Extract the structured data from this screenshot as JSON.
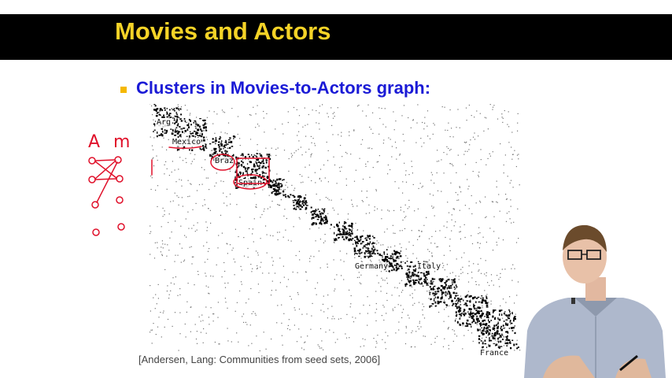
{
  "slide": {
    "title": "Movies and Actors",
    "bullet": "Clusters in Movies-to-Actors graph:",
    "citation": "[Andersen, Lang: Communities from seed sets, 2006]"
  },
  "matrix_plot": {
    "labels": {
      "arg": "Arg",
      "mexico": "Mexico",
      "brazil": "Braz",
      "spain": "Spain",
      "germany": "Germany",
      "italy": "Italy",
      "france": "France"
    }
  },
  "annotations": {
    "letter_a": "A",
    "letter_m": "m"
  },
  "colors": {
    "title_bar": "#000000",
    "title_text": "#f5d327",
    "bullet_text": "#1a1ad6",
    "bullet_marker": "#f5b800",
    "ink": "#e0102a"
  }
}
